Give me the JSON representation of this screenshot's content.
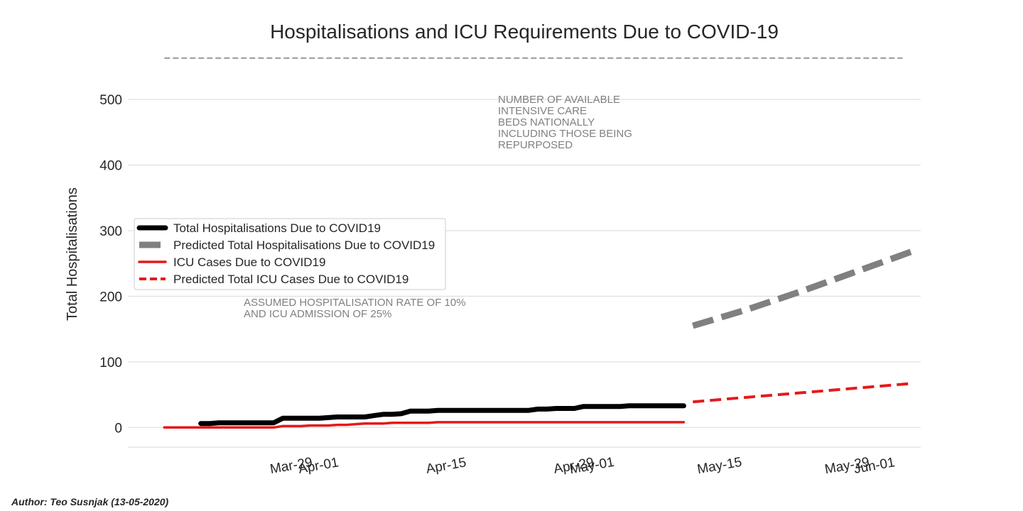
{
  "chart_data": {
    "type": "line",
    "title": "Hospitalisations and ICU Requirements Due to COVID-19",
    "xlabel": "",
    "ylabel": "Total Hospitalisations",
    "ylim": [
      -30,
      565
    ],
    "xlim_days": [
      -8,
      79
    ],
    "grid": true,
    "yticks": [
      0,
      100,
      200,
      300,
      400,
      500
    ],
    "xticks": [
      {
        "label": "Mar-29",
        "day": 10
      },
      {
        "label": "Apr-01",
        "day": 13
      },
      {
        "label": "Apr-15",
        "day": 27
      },
      {
        "label": "Apr-29",
        "day": 41
      },
      {
        "label": "May-01",
        "day": 43
      },
      {
        "label": "May-15",
        "day": 57
      },
      {
        "label": "May-29",
        "day": 71
      },
      {
        "label": "Jun-01",
        "day": 74
      }
    ],
    "capacity_line": {
      "value": 563,
      "day_start": -4,
      "day_end": 77
    },
    "series": [
      {
        "name": "Total Hospitalisations Due to COVID19",
        "style": "solid",
        "color": "#000000",
        "x": [
          0,
          1,
          2,
          3,
          4,
          5,
          6,
          7,
          8,
          9,
          10,
          11,
          12,
          13,
          14,
          15,
          16,
          17,
          18,
          19,
          20,
          21,
          22,
          23,
          24,
          25,
          26,
          27,
          28,
          29,
          30,
          31,
          32,
          33,
          34,
          35,
          36,
          37,
          38,
          39,
          40,
          41,
          42,
          43,
          44,
          45,
          46,
          47,
          48,
          49,
          50,
          51,
          52,
          53
        ],
        "values": [
          6,
          6,
          7,
          7,
          7,
          7,
          7,
          7,
          7,
          14,
          14,
          14,
          14,
          14,
          15,
          16,
          16,
          16,
          16,
          18,
          20,
          20,
          21,
          25,
          25,
          25,
          26,
          26,
          26,
          26,
          26,
          26,
          26,
          26,
          26,
          26,
          26,
          28,
          28,
          29,
          29,
          29,
          32,
          32,
          32,
          32,
          32,
          33,
          33,
          33,
          33,
          33,
          33,
          33
        ]
      },
      {
        "name": "Predicted Total Hospitalisations Due to COVID19",
        "style": "dashed",
        "color": "#808080",
        "x": [
          54,
          60,
          66,
          72,
          78
        ],
        "values": [
          155,
          180,
          208,
          238,
          268
        ]
      },
      {
        "name": "ICU Cases Due to COVID19",
        "style": "solid",
        "color": "#e41a1c",
        "x": [
          -4,
          0,
          1,
          2,
          3,
          4,
          5,
          6,
          7,
          8,
          9,
          10,
          11,
          12,
          13,
          14,
          15,
          16,
          17,
          18,
          19,
          20,
          21,
          22,
          23,
          24,
          25,
          26,
          27,
          28,
          29,
          30,
          31,
          32,
          33,
          34,
          35,
          36,
          37,
          38,
          39,
          40,
          41,
          42,
          43,
          44,
          45,
          46,
          47,
          48,
          49,
          50,
          51,
          52,
          53
        ],
        "values": [
          0,
          0,
          0,
          0,
          0,
          0,
          0,
          0,
          0,
          0,
          2,
          2,
          2,
          3,
          3,
          3,
          4,
          4,
          5,
          6,
          6,
          6,
          7,
          7,
          7,
          7,
          7,
          8,
          8,
          8,
          8,
          8,
          8,
          8,
          8,
          8,
          8,
          8,
          8,
          8,
          8,
          8,
          8,
          8,
          8,
          8,
          8,
          8,
          8,
          8,
          8,
          8,
          8,
          8,
          8
        ]
      },
      {
        "name": "Predicted Total ICU Cases Due to COVID19",
        "style": "dashed",
        "color": "#e41a1c",
        "x": [
          54,
          60,
          66,
          72,
          78
        ],
        "values": [
          39,
          46,
          53,
          60,
          67
        ]
      }
    ],
    "annotations": [
      {
        "lines": [
          "NUMBER OF AVAILABLE",
          "INTENSIVE CARE",
          "BEDS NATIONALLY",
          "INCLUDING THOSE BEING",
          "REPURPOSED"
        ]
      },
      {
        "lines": [
          "ASSUMED HOSPITALISATION RATE OF 10%",
          "AND ICU ADMISSION OF 25%"
        ]
      }
    ]
  },
  "author": "Author: Teo Susnjak (13-05-2020)"
}
